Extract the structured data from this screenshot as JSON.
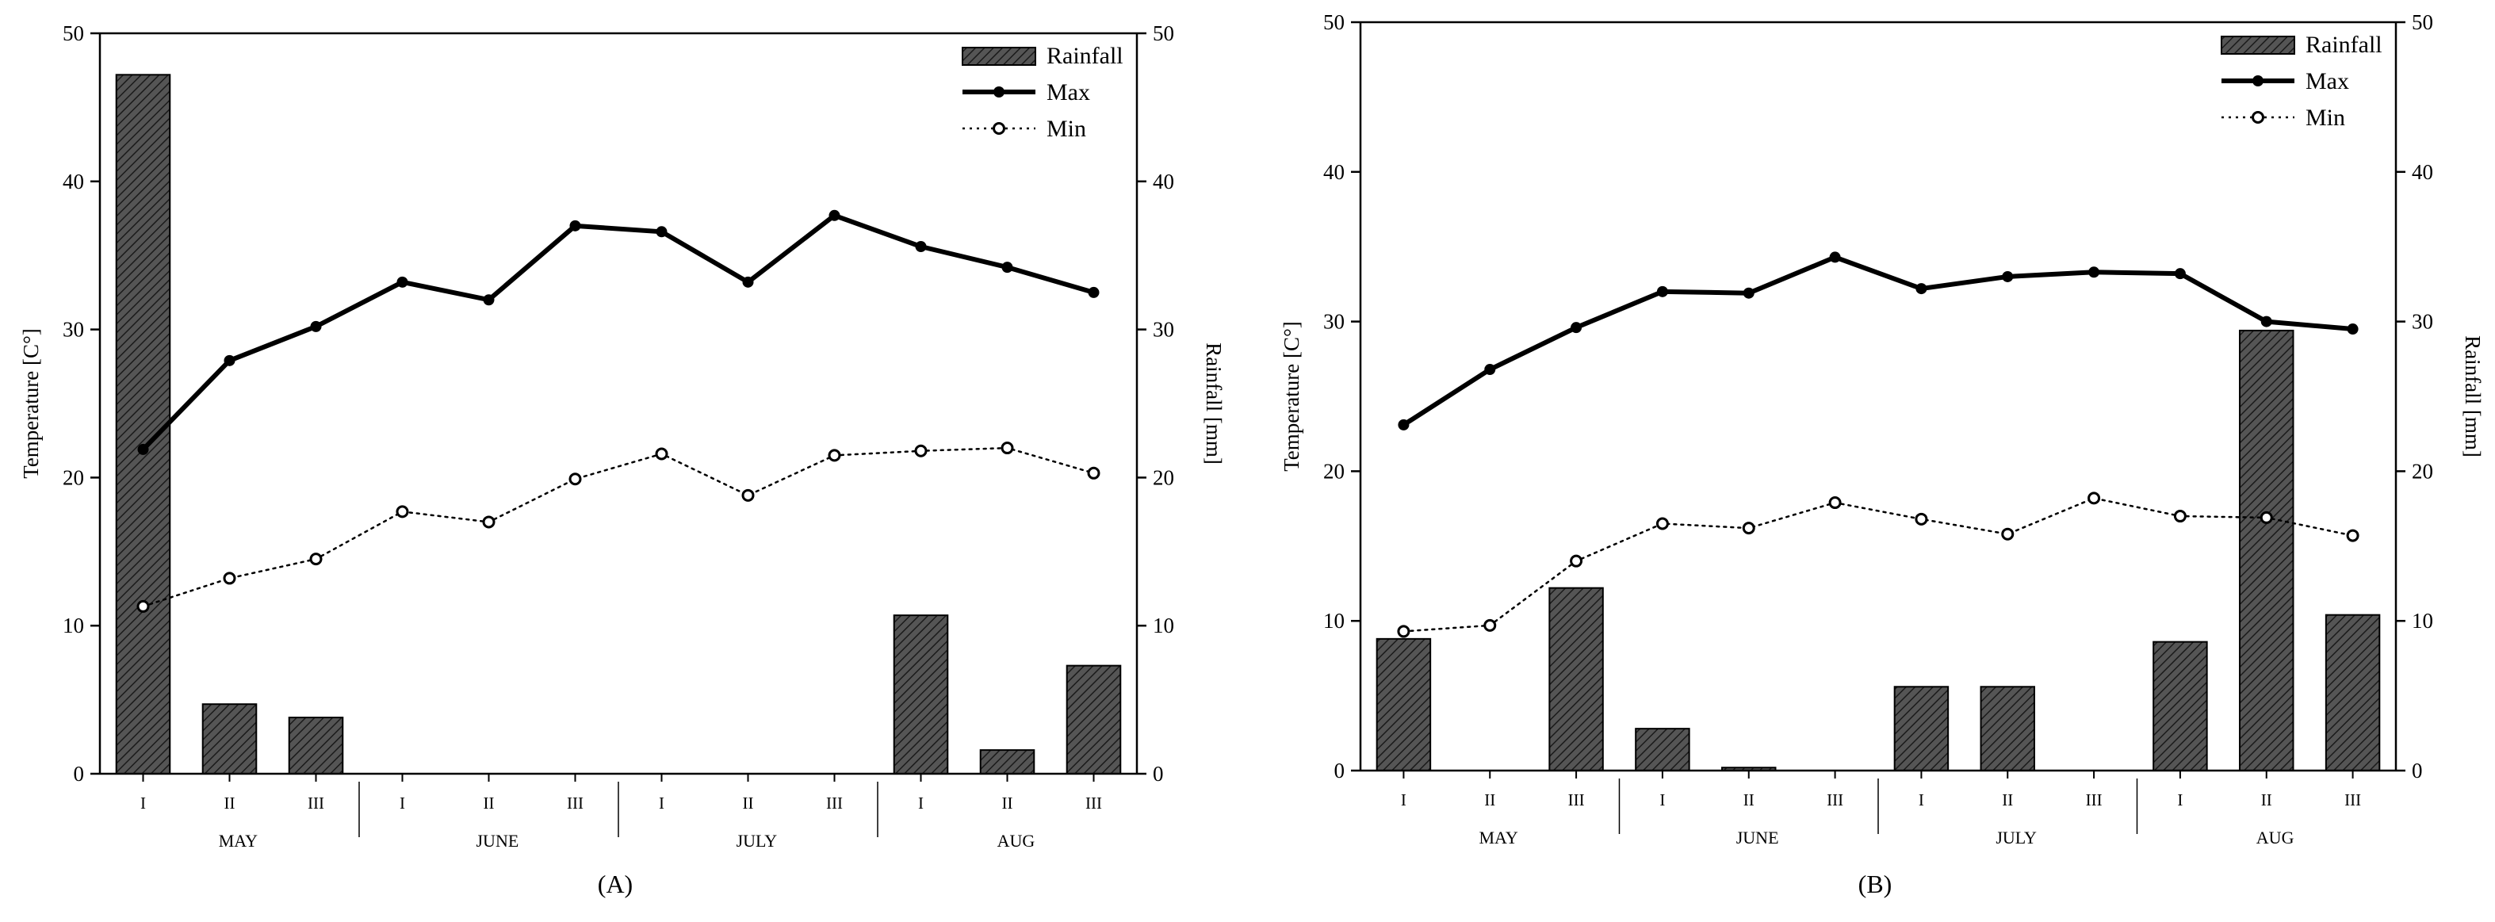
{
  "colors": {
    "axis": "#000000",
    "bar_fill": "#555555",
    "bar_hatch": "#1a1a1a",
    "max_line": "#000000",
    "min_line": "#000000",
    "min_marker_fill": "#ffffff"
  },
  "chart_data": [
    {
      "type": "bar+line",
      "panel_label": "(A)",
      "ylabel_left": "Temperature [C°]",
      "ylabel_right": "Rainfall [mm]",
      "ylim_left": [
        0,
        50
      ],
      "ylim_right": [
        0,
        50
      ],
      "yticks": [
        "0",
        "10",
        "20",
        "30",
        "40",
        "50"
      ],
      "grid": false,
      "legend_position": "top-right",
      "categories": [
        "I",
        "II",
        "III",
        "I",
        "II",
        "III",
        "I",
        "II",
        "III",
        "I",
        "II",
        "III"
      ],
      "months": [
        "MAY",
        "JUNE",
        "JULY",
        "AUG"
      ],
      "series": [
        {
          "name": "Rainfall",
          "kind": "bar",
          "axis": "right",
          "values": [
            47.2,
            4.7,
            3.8,
            0,
            0,
            0,
            0,
            0,
            0,
            10.7,
            1.6,
            7.3
          ]
        },
        {
          "name": "Max",
          "kind": "line",
          "axis": "left",
          "values": [
            21.9,
            27.9,
            30.2,
            33.2,
            32.0,
            37.0,
            36.6,
            33.2,
            37.7,
            35.6,
            34.2,
            32.5
          ]
        },
        {
          "name": "Min",
          "kind": "line-dotted",
          "axis": "left",
          "values": [
            11.3,
            13.2,
            14.5,
            17.7,
            17.0,
            19.9,
            21.6,
            18.8,
            21.5,
            21.8,
            22.0,
            20.3
          ]
        }
      ]
    },
    {
      "type": "bar+line",
      "panel_label": "(B)",
      "ylabel_left": "Temperature [C°]",
      "ylabel_right": "Rainfall [mm]",
      "ylim_left": [
        0,
        50
      ],
      "ylim_right": [
        0,
        50
      ],
      "yticks": [
        "0",
        "10",
        "20",
        "30",
        "40",
        "50"
      ],
      "grid": false,
      "legend_position": "top-right",
      "categories": [
        "I",
        "II",
        "III",
        "I",
        "II",
        "III",
        "I",
        "II",
        "III",
        "I",
        "II",
        "III"
      ],
      "months": [
        "MAY",
        "JUNE",
        "JULY",
        "AUG"
      ],
      "series": [
        {
          "name": "Rainfall",
          "kind": "bar",
          "axis": "right",
          "values": [
            8.8,
            0,
            12.2,
            2.8,
            0.2,
            0,
            5.6,
            5.6,
            0,
            8.6,
            29.4,
            10.4
          ]
        },
        {
          "name": "Max",
          "kind": "line",
          "axis": "left",
          "values": [
            23.1,
            26.8,
            29.6,
            32.0,
            31.9,
            34.3,
            32.2,
            33.0,
            33.3,
            33.2,
            30.0,
            29.5
          ]
        },
        {
          "name": "Min",
          "kind": "line-dotted",
          "axis": "left",
          "values": [
            9.3,
            9.7,
            14.0,
            16.5,
            16.2,
            17.9,
            16.8,
            15.8,
            18.2,
            17.0,
            16.9,
            15.7
          ]
        }
      ]
    }
  ]
}
